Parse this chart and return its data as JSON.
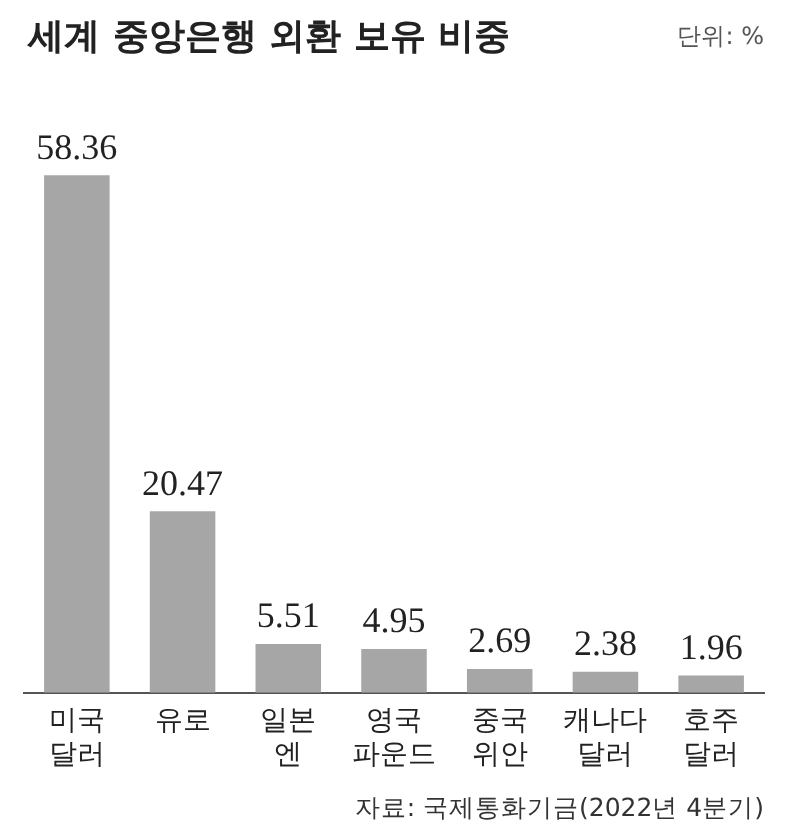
{
  "chart_data": {
    "type": "bar",
    "title": "세계 중앙은행 외환 보유 비중",
    "subtitle": "단위: %",
    "categories": [
      "미국\n달러",
      "유로",
      "일본\n엔",
      "영국\n파운드",
      "중국\n위안",
      "캐나다\n달러",
      "호주\n달러"
    ],
    "values": [
      58.36,
      20.47,
      5.51,
      4.95,
      2.69,
      2.38,
      1.96
    ],
    "color": "#a6a6a6",
    "data_labels": true,
    "legend": false,
    "annotations": [
      "자료: 국제통화기금(2022년 4분기)"
    ]
  }
}
